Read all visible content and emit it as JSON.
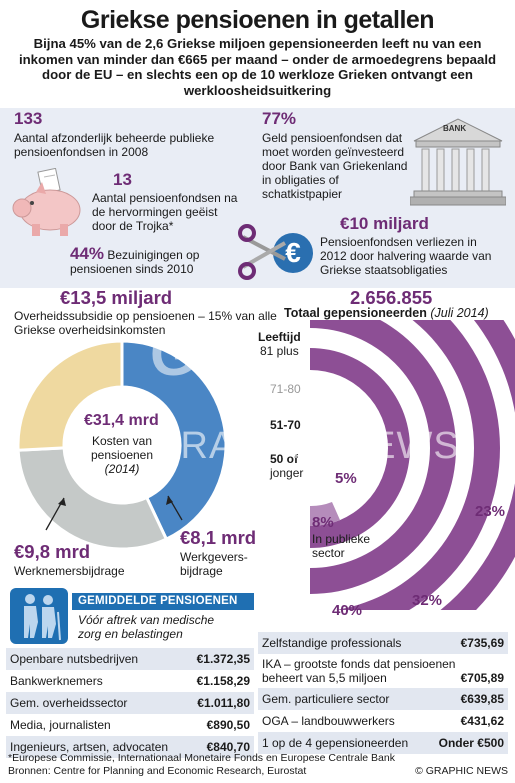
{
  "header": {
    "title": "Griekse pensioenen in getallen",
    "subtitle": "Bijna 45% van de 2,6 Griekse miljoen gepensioneerden leeft nu van een inkomen van minder dan €665 per maand – onder de armoedegrens bepaald door de EU – en slechts een op de 10 werkloze Grieken ontvangt een werkloosheidsuitkering"
  },
  "stats": {
    "s1_num": "133",
    "s1_text": "Aantal afzonderlijk beheerde publieke pensioenfondsen in 2008",
    "s2_num": "13",
    "s2_text": "Aantal pensioenfondsen na de hervormingen geëist door de Trojka*",
    "s3_num": "44%",
    "s3_text": "Bezuinigingen op pensioenen sinds 2010",
    "s4_num": "77%",
    "s4_text": "Geld pensioenfondsen dat moet worden geïnvesteerd door Bank van Griekenland in obligaties of schatkistpapier",
    "s5_num": "€10 miljard",
    "s5_text": "Pensioenfondsen verliezen in 2012 door halvering waarde van Griekse staatsobligaties",
    "bank_label": "BANK"
  },
  "donut": {
    "headline": "€13,5 miljard",
    "headline_text": "Overheidssubsidie op pensioenen – 15% van alle Griekse overheidsinkomsten",
    "center_value": "€31,4 mrd",
    "center_l1": "Kosten van",
    "center_l2": "pensioenen",
    "center_l3": "(2014)",
    "emp_value": "€9,8 mrd",
    "emp_label": "Werknemersbijdrage",
    "er_value": "€8,1 mrd",
    "er_l1": "Werkgevers-",
    "er_l2": "bijdrage"
  },
  "arcs": {
    "total": "2.656.855",
    "total_label": "Totaal gepensioneerden",
    "total_date": "(Juli 2014)",
    "age_header": "Leeftijd",
    "age_81": "81 plus",
    "age_71": "71-80",
    "age_51": "51-70",
    "age_50a": "50 of",
    "age_50b": "jonger",
    "pct_5": "5%",
    "pct_8": "8%",
    "pub_l1": "In publieke",
    "pub_l2": "sector",
    "pct_23": "23%",
    "pct_32": "32%",
    "pct_40": "40%"
  },
  "watermark": {
    "line1": "GN",
    "line2": "GRAPHIC NEWS"
  },
  "avg": {
    "title": "GEMIDDELDE PENSIOENEN",
    "sub1": "Vóór aftrek van medische",
    "sub2": "zorg en belastingen"
  },
  "table_left": [
    {
      "label": "Openbare nutsbedrijven",
      "value": "€1.372,35"
    },
    {
      "label": "Bankwerknemers",
      "value": "€1.158,29"
    },
    {
      "label": "Gem. overheidssector",
      "value": "€1.011,80"
    },
    {
      "label": "Media, journalisten",
      "value": "€890,50"
    },
    {
      "label": "Ingenieurs, artsen, advocaten",
      "value": "€840,70"
    }
  ],
  "table_right": {
    "r1_label": "Zelfstandige professionals",
    "r1_value": "€735,69",
    "r2_l1": "IKA – grootste fonds dat pensioenen",
    "r2_l2": "beheert van 5,5 miljoen",
    "r2_value": "€705,89",
    "r3_label": "Gem. particuliere sector",
    "r3_value": "€639,85",
    "r4_label": "OGA – landbouwwerkers",
    "r4_value": "€431,62",
    "r5_label": "1 op de 4 gepensioneerden",
    "r5_value": "Onder €500"
  },
  "footer": {
    "note": "*Europese Commissie, Internationaal Monetaire Fonds en Europese Centrale Bank",
    "source": "Bronnen: Centre for Planning and Economic Research, Eurostat",
    "credit": "© GRAPHIC NEWS"
  },
  "colors": {
    "purple": "#8d4f95",
    "blue": "#4a86c5",
    "gray": "#c5c9c8",
    "yellow": "#efd9a0",
    "accent": "#6e2c75"
  },
  "chart_data": [
    {
      "type": "pie",
      "title": "Kosten van pensioenen (2014)",
      "total": 31.4,
      "categories": [
        "Overheidssubsidie",
        "Werknemersbijdrage",
        "Werkgeversbijdrage"
      ],
      "values": [
        13.5,
        9.8,
        8.1
      ],
      "unit": "mrd €"
    },
    {
      "type": "bar",
      "title": "Totaal gepensioneerden (Juli 2014)",
      "categories": [
        "81 plus",
        "71-80",
        "51-70",
        "50 of jonger"
      ],
      "values": [
        23,
        32,
        40,
        5
      ],
      "unit": "%"
    }
  ]
}
